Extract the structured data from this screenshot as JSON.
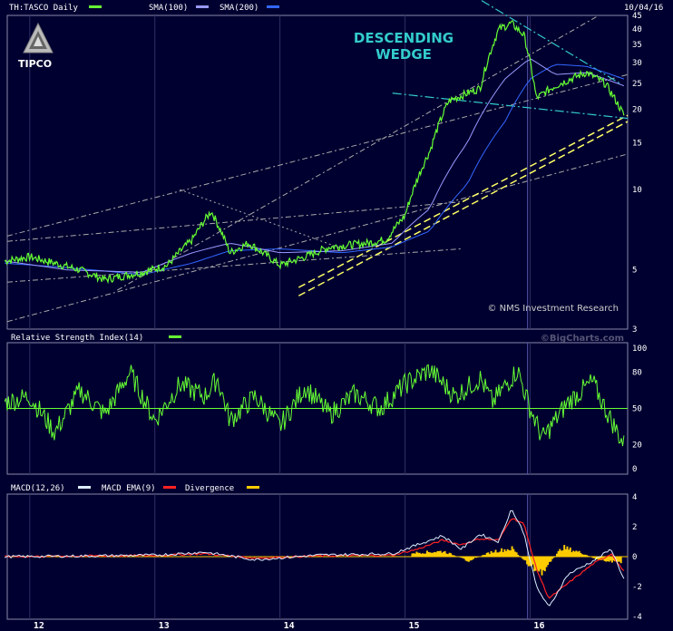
{
  "header": {
    "ticker_label": "TH:TASCO Daily",
    "sma100_label": "SMA(100)",
    "sma200_label": "SMA(200)",
    "date": "10/04/16"
  },
  "logo": {
    "text": "TIPCO"
  },
  "annotations": {
    "pattern_line1": "DESCENDING",
    "pattern_line2": "WEDGE",
    "source": "© NMS Investment Research",
    "bigcharts": "©BigCharts.com"
  },
  "colors": {
    "background": "#000030",
    "price": "#66ff33",
    "sma100": "#9999ff",
    "sma200": "#3366ff",
    "macd": "#ddeeff",
    "macd_signal": "#ff2222",
    "divergence": "#ffcc00",
    "pattern_text": "#33cccc",
    "trendline_yellow": "#ffff66"
  },
  "rsi_panel": {
    "title": "Relative Strength Index(14)"
  },
  "macd_panel": {
    "title_macd": "MACD(12,26)",
    "title_ema": "MACD EMA(9)",
    "title_div": "Divergence"
  },
  "x_axis": {
    "labels": [
      "12",
      "13",
      "14",
      "15",
      "16"
    ]
  },
  "chart_data": [
    {
      "type": "line",
      "title": "TH:TASCO Daily",
      "y_scale": "log",
      "ylim": [
        3,
        45
      ],
      "y_ticks": [
        "45",
        "40",
        "35",
        "30",
        "25",
        "20",
        "15",
        "10",
        "5",
        "3"
      ],
      "x_range": [
        "2011-10",
        "2016-10-04"
      ],
      "series": [
        {
          "name": "TH:TASCO Daily",
          "x": [
            2011.8,
            2012.0,
            2012.4,
            2012.6,
            2012.9,
            2013.1,
            2013.3,
            2013.45,
            2013.6,
            2013.75,
            2014.0,
            2014.2,
            2014.4,
            2014.7,
            2014.85,
            2015.0,
            2015.2,
            2015.35,
            2015.6,
            2015.75,
            2015.85,
            2015.95,
            2016.05,
            2016.2,
            2016.45,
            2016.6,
            2016.75
          ],
          "values": [
            5.4,
            5.6,
            5.0,
            4.6,
            4.9,
            5.2,
            6.5,
            8.3,
            5.8,
            6.3,
            5.2,
            5.6,
            6.1,
            6.3,
            6.5,
            8.0,
            14.0,
            21.5,
            24.0,
            40.0,
            42.0,
            38.0,
            22.0,
            24.5,
            27.5,
            25.0,
            19.0
          ]
        },
        {
          "name": "SMA(100)",
          "x": [
            2011.8,
            2012.3,
            2012.9,
            2013.3,
            2013.6,
            2014.0,
            2014.5,
            2014.9,
            2015.2,
            2015.5,
            2015.8,
            2016.0,
            2016.2,
            2016.45,
            2016.75
          ],
          "values": [
            5.4,
            5.0,
            4.9,
            5.8,
            6.3,
            5.8,
            5.9,
            6.3,
            8.5,
            15.0,
            26.0,
            31.0,
            27.0,
            27.5,
            24.5
          ]
        },
        {
          "name": "SMA(200)",
          "x": [
            2011.8,
            2012.3,
            2012.9,
            2013.3,
            2013.6,
            2014.0,
            2014.5,
            2014.9,
            2015.2,
            2015.5,
            2015.8,
            2016.0,
            2016.2,
            2016.45,
            2016.75
          ],
          "values": [
            5.3,
            5.1,
            4.8,
            5.3,
            5.9,
            6.0,
            5.8,
            6.1,
            7.0,
            10.5,
            18.0,
            26.0,
            29.5,
            29.0,
            26.0
          ]
        }
      ],
      "legend": "top-left",
      "grid": true
    },
    {
      "type": "line",
      "title": "Relative Strength Index(14)",
      "ylim": [
        0,
        100
      ],
      "y_ticks": [
        "100",
        "80",
        "50",
        "20",
        "0"
      ],
      "series": [
        {
          "name": "Relative Strength Index(14)",
          "x": [
            2011.8,
            2012.0,
            2012.2,
            2012.4,
            2012.6,
            2012.8,
            2013.0,
            2013.2,
            2013.4,
            2013.5,
            2013.6,
            2013.8,
            2014.0,
            2014.2,
            2014.4,
            2014.6,
            2014.8,
            2015.0,
            2015.2,
            2015.4,
            2015.6,
            2015.7,
            2015.9,
            2016.0,
            2016.1,
            2016.3,
            2016.5,
            2016.6,
            2016.75
          ],
          "values": [
            55,
            60,
            30,
            65,
            45,
            80,
            40,
            70,
            60,
            75,
            40,
            60,
            35,
            68,
            45,
            62,
            50,
            70,
            82,
            60,
            75,
            55,
            82,
            50,
            25,
            55,
            72,
            50,
            20
          ]
        }
      ],
      "grid": true
    },
    {
      "type": "line",
      "title": "MACD(12,26)",
      "ylim": [
        -4,
        4
      ],
      "y_ticks": [
        "4",
        "2",
        "0",
        "-2",
        "-4"
      ],
      "series": [
        {
          "name": "MACD(12,26)",
          "x": [
            2011.8,
            2012.5,
            2013.0,
            2013.4,
            2013.8,
            2014.3,
            2014.9,
            2015.1,
            2015.3,
            2015.45,
            2015.6,
            2015.75,
            2015.85,
            2015.95,
            2016.05,
            2016.15,
            2016.3,
            2016.5,
            2016.65,
            2016.75
          ],
          "values": [
            0,
            0.05,
            0.1,
            0.3,
            -0.2,
            0.1,
            0.2,
            0.8,
            1.4,
            0.5,
            1.5,
            1.0,
            3.2,
            1.6,
            -2.0,
            -3.4,
            -1.2,
            -0.3,
            0.5,
            -1.5
          ]
        },
        {
          "name": "MACD EMA(9)",
          "x": [
            2011.8,
            2012.5,
            2013.0,
            2013.4,
            2013.8,
            2014.3,
            2014.9,
            2015.1,
            2015.3,
            2015.45,
            2015.6,
            2015.75,
            2015.85,
            2015.95,
            2016.05,
            2016.15,
            2016.3,
            2016.5,
            2016.65,
            2016.75
          ],
          "values": [
            0,
            0.05,
            0.08,
            0.2,
            -0.1,
            0.05,
            0.1,
            0.5,
            1.1,
            0.8,
            1.2,
            1.1,
            2.6,
            2.2,
            -0.8,
            -2.8,
            -1.8,
            -0.5,
            0.2,
            -1.0
          ]
        },
        {
          "name": "Divergence",
          "x": [
            2015.1,
            2015.3,
            2015.5,
            2015.7,
            2015.85,
            2016.0,
            2016.1,
            2016.25,
            2016.4,
            2016.55,
            2016.7
          ],
          "values": [
            0.3,
            0.4,
            -0.3,
            0.4,
            0.6,
            -0.8,
            -1.1,
            0.7,
            0.3,
            -0.3,
            -0.4
          ]
        }
      ],
      "grid": true
    }
  ]
}
